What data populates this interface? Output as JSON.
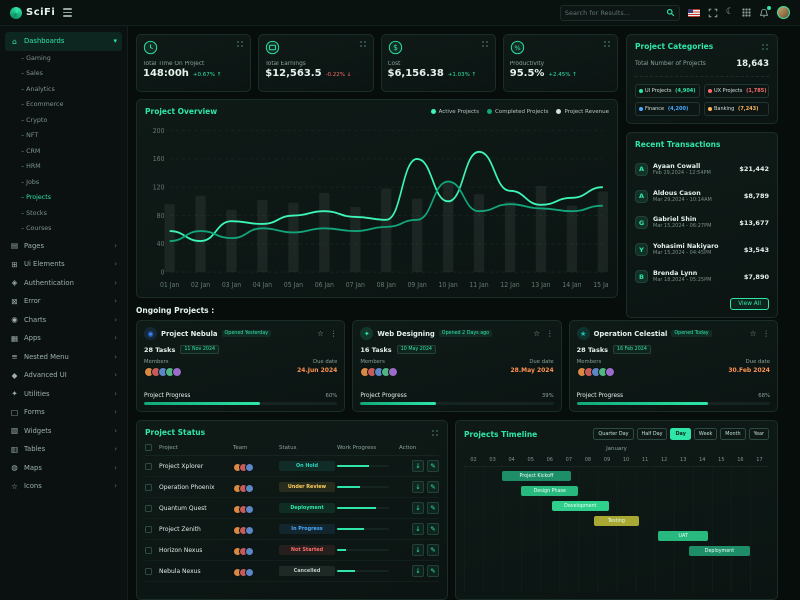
{
  "header": {
    "logo_text": "SciFi",
    "search_placeholder": "Search for Results..."
  },
  "sidebar": {
    "items": [
      {
        "label": "Dashboards",
        "icon": "home",
        "active": true,
        "expanded": true,
        "children": [
          "Gaming",
          "Sales",
          "Analytics",
          "Ecommerce",
          "Crypto",
          "NFT",
          "CRM",
          "HRM",
          "Jobs",
          "Projects",
          "Stocks",
          "Courses"
        ],
        "active_child": "Projects"
      },
      {
        "label": "Pages",
        "icon": "pages"
      },
      {
        "label": "Ui Elements",
        "icon": "ui"
      },
      {
        "label": "Authentication",
        "icon": "auth"
      },
      {
        "label": "Error",
        "icon": "error"
      },
      {
        "label": "Charts",
        "icon": "charts"
      },
      {
        "label": "Apps",
        "icon": "apps"
      },
      {
        "label": "Nested Menu",
        "icon": "nested"
      },
      {
        "label": "Advanced UI",
        "icon": "advanced"
      },
      {
        "label": "Utilities",
        "icon": "utilities"
      },
      {
        "label": "Forms",
        "icon": "forms"
      },
      {
        "label": "Widgets",
        "icon": "widgets"
      },
      {
        "label": "Tables",
        "icon": "tables"
      },
      {
        "label": "Maps",
        "icon": "maps"
      },
      {
        "label": "Icons",
        "icon": "icons"
      }
    ]
  },
  "stats": [
    {
      "label": "Total Time On Project",
      "value": "148:00h",
      "delta": "+0.67%",
      "trend": "up",
      "icon": "clock-icon",
      "icon_type": "clock"
    },
    {
      "label": "Total Earnings",
      "value": "$12,563.5",
      "delta": "-0.22%",
      "trend": "down",
      "icon": "wallet-icon",
      "icon_type": "wallet"
    },
    {
      "label": "Cost",
      "value": "$6,156.38",
      "delta": "+1.03%",
      "trend": "up",
      "icon": "dollar-icon",
      "icon_type": "dollar"
    },
    {
      "label": "Productivity",
      "value": "95.5%",
      "delta": "+2.45%",
      "trend": "up",
      "icon": "gauge-icon",
      "icon_type": "percent"
    }
  ],
  "overview": {
    "title": "Project Overview"
  },
  "chart_data": {
    "type": "line",
    "title": "Project Overview",
    "x": [
      "01 Jan",
      "02 Jan",
      "03 Jan",
      "04 Jan",
      "05 Jan",
      "06 Jan",
      "07 Jan",
      "08 Jan",
      "09 Jan",
      "10 Jan",
      "11 Jan",
      "12 Jan",
      "13 Jan",
      "14 Jan",
      "15 Jan"
    ],
    "ylim": [
      0,
      200
    ],
    "y_ticks": [
      0,
      40,
      80,
      120,
      160,
      200
    ],
    "legend_position": "top",
    "series": [
      {
        "name": "Active Projects",
        "type": "line",
        "color": "#3df5b4",
        "values": [
          58,
          44,
          72,
          68,
          80,
          86,
          78,
          74,
          160,
          100,
          170,
          115,
          95,
          105,
          120
        ]
      },
      {
        "name": "Completed Projects",
        "type": "line",
        "color": "#12a47a",
        "values": [
          44,
          58,
          48,
          62,
          56,
          62,
          58,
          64,
          74,
          128,
          86,
          96,
          90,
          86,
          94
        ]
      },
      {
        "name": "Project Revenue",
        "type": "bar",
        "color": "rgba(223,240,233,0.07)",
        "values": [
          96,
          108,
          88,
          102,
          98,
          112,
          92,
          118,
          104,
          126,
          110,
          100,
          122,
          94,
          114
        ]
      }
    ]
  },
  "categories": {
    "title": "Project Categories",
    "total_label": "Total Number of Projects",
    "total_value": "18,643",
    "badges": [
      {
        "label": "UI Projects",
        "count": "(4,904)",
        "color": "#2fe6a8"
      },
      {
        "label": "UX Projects",
        "count": "(1,785)",
        "color": "#ff6b6b"
      },
      {
        "label": "Finance",
        "count": "(4,200)",
        "color": "#4aa8ff"
      },
      {
        "label": "Banking",
        "count": "(7,243)",
        "color": "#ffb65c"
      }
    ]
  },
  "transactions": {
    "title": "Recent Transactions",
    "view_all_label": "View All",
    "items": [
      {
        "name": "Ayaan Cowall",
        "date": "Feb 29,2024 - 12:54PM",
        "amount": "$21,442"
      },
      {
        "name": "Aldous Cason",
        "date": "Mar 29,2024 - 10:14AM",
        "amount": "$8,789"
      },
      {
        "name": "Gabriel Shin",
        "date": "Mar 15,2024 - 06:27PM",
        "amount": "$13,677"
      },
      {
        "name": "Yohasimi Nakiyaro",
        "date": "Mar 15,2024 - 04:45PM",
        "amount": "$3,543"
      },
      {
        "name": "Brenda Lynn",
        "date": "Mar 18,2024 - 05:25PM",
        "amount": "$7,890"
      }
    ]
  },
  "ongoing": {
    "section_label": "Ongoing Projects :",
    "cards": [
      {
        "title": "Project Nebula",
        "opened": "Opened Yesterday",
        "tasks": "28 Tasks",
        "date_badge": "11 Nov 2024",
        "members_label": "Members",
        "due_label": "Due date",
        "due": "24.Jun 2024",
        "progress_label": "Project Progress",
        "progress": 60,
        "progress_text": "60%",
        "logo_color": "#3b82f6",
        "logo_glyph": "◉"
      },
      {
        "title": "Web Designing",
        "opened": "Opened 2 Days ago",
        "tasks": "16 Tasks",
        "date_badge": "10 May 2024",
        "members_label": "Members",
        "due_label": "Due date",
        "due": "28.May 2024",
        "progress_label": "Project Progress",
        "progress": 39,
        "progress_text": "39%",
        "logo_color": "#2fe6a8",
        "logo_glyph": "✦"
      },
      {
        "title": "Operation Celestial",
        "opened": "Opened Today",
        "tasks": "28 Tasks",
        "date_badge": "16 Feb 2024",
        "members_label": "Members",
        "due_label": "Due date",
        "due": "30.Feb 2024",
        "progress_label": "Project Progress",
        "progress": 68,
        "progress_text": "68%",
        "logo_color": "#19c2b8",
        "logo_glyph": "★"
      }
    ]
  },
  "status_table": {
    "title": "Project Status",
    "columns": [
      "Project",
      "Team",
      "Status",
      "Work Progress",
      "Action"
    ],
    "rows": [
      {
        "project": "Project Xplorer",
        "status": "On Hold",
        "status_color": "#2fd3c0",
        "progress": 62
      },
      {
        "project": "Operation Phoenix",
        "status": "Under Review",
        "status_color": "#ffcf5c",
        "progress": 45
      },
      {
        "project": "Quantum Quest",
        "status": "Deployment",
        "status_color": "#2fe6a8",
        "progress": 75
      },
      {
        "project": "Project Zenith",
        "status": "In Progress",
        "status_color": "#4aa8ff",
        "progress": 52
      },
      {
        "project": "Horizon Nexus",
        "status": "Not Started",
        "status_color": "#ff6b6b",
        "progress": 18
      },
      {
        "project": "Nebula Nexus",
        "status": "Cancelled",
        "status_color": "#b9c8c2",
        "progress": 35
      }
    ]
  },
  "timeline": {
    "title": "Projects Timeline",
    "range_buttons": [
      "Quarter Day",
      "Half Day",
      "Day",
      "Week",
      "Month",
      "Year"
    ],
    "active_button": "Day",
    "month_label": "January",
    "days": [
      "02",
      "03",
      "04",
      "05",
      "06",
      "07",
      "08",
      "09",
      "10",
      "11",
      "12",
      "13",
      "14",
      "15",
      "16",
      "17"
    ],
    "bars": [
      {
        "label": "Project Kickoff",
        "start": 2,
        "span": 3.6,
        "row": 0,
        "color": "#1e8e68"
      },
      {
        "label": "Design Phase",
        "start": 3,
        "span": 3,
        "row": 1,
        "color": "#27b97e"
      },
      {
        "label": "Development",
        "start": 4.6,
        "span": 3,
        "row": 2,
        "color": "#2fd08b"
      },
      {
        "label": "Testing",
        "start": 6.8,
        "span": 2.4,
        "row": 3,
        "color": "#a8a832"
      },
      {
        "label": "UAT",
        "start": 10.2,
        "span": 2.6,
        "row": 4,
        "color": "#27b97e"
      },
      {
        "label": "Deployment",
        "start": 11.8,
        "span": 3.2,
        "row": 5,
        "color": "#1e8e68"
      }
    ]
  },
  "colors": {
    "accent": "#2fe6a8",
    "background": "#070d0b",
    "negative": "#ff6b6b",
    "due_date": "#ff9351"
  }
}
